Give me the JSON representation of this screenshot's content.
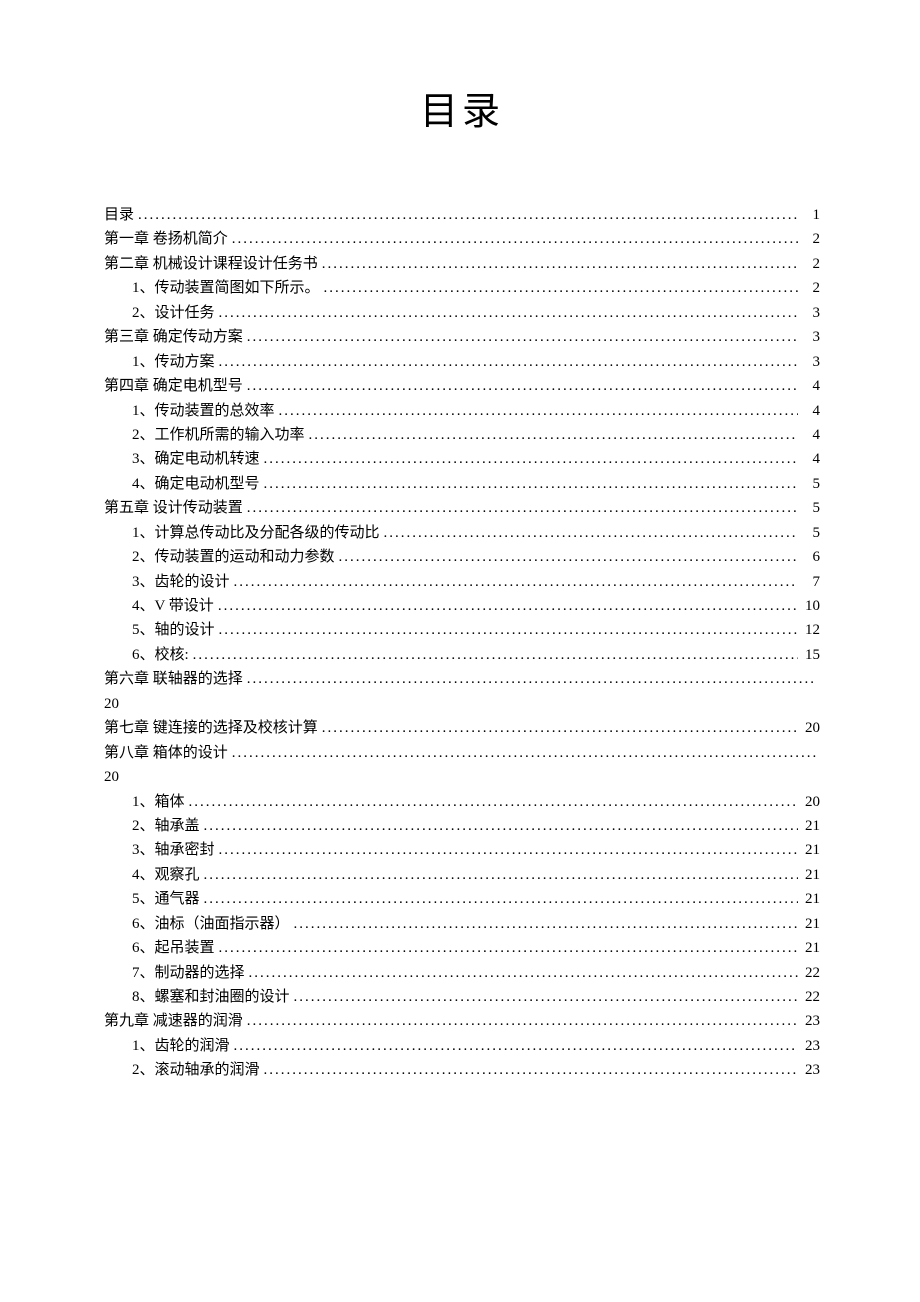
{
  "title": "目录",
  "entries": [
    {
      "indent": 0,
      "label": "目录",
      "page": "1",
      "wrap": false
    },
    {
      "indent": 0,
      "label": "第一章 卷扬机简介",
      "page": "2",
      "wrap": false
    },
    {
      "indent": 0,
      "label": "第二章 机械设计课程设计任务书",
      "page": "2",
      "wrap": false
    },
    {
      "indent": 1,
      "label": "1、传动装置简图如下所示。",
      "page": "2",
      "wrap": false
    },
    {
      "indent": 1,
      "label": "2、设计任务",
      "page": "3",
      "wrap": false
    },
    {
      "indent": 0,
      "label": "第三章 确定传动方案",
      "page": "3",
      "wrap": false
    },
    {
      "indent": 1,
      "label": "1、传动方案",
      "page": "3",
      "wrap": false
    },
    {
      "indent": 0,
      "label": "第四章 确定电机型号",
      "page": "4",
      "wrap": false
    },
    {
      "indent": 1,
      "label": "1、传动装置的总效率",
      "page": "4",
      "wrap": false
    },
    {
      "indent": 1,
      "label": "2、工作机所需的输入功率",
      "page": "4",
      "wrap": false
    },
    {
      "indent": 1,
      "label": "3、确定电动机转速",
      "page": "4",
      "wrap": false
    },
    {
      "indent": 1,
      "label": "4、确定电动机型号",
      "page": "5",
      "wrap": false
    },
    {
      "indent": 0,
      "label": "第五章 设计传动装置",
      "page": "5",
      "wrap": false
    },
    {
      "indent": 1,
      "label": "1、计算总传动比及分配各级的传动比",
      "page": "5",
      "wrap": false
    },
    {
      "indent": 1,
      "label": "2、传动装置的运动和动力参数",
      "page": "6",
      "wrap": false
    },
    {
      "indent": 1,
      "label": "3、齿轮的设计",
      "page": "7",
      "wrap": false
    },
    {
      "indent": 1,
      "label": "4、V 带设计",
      "page": "10",
      "wrap": false
    },
    {
      "indent": 1,
      "label": "5、轴的设计",
      "page": "12",
      "wrap": false
    },
    {
      "indent": 1,
      "label": "6、校核:",
      "page": "15",
      "wrap": false
    },
    {
      "indent": 0,
      "label": "第六章 联轴器的选择",
      "page": "20",
      "wrap": true
    },
    {
      "indent": 0,
      "label": "第七章 键连接的选择及校核计算",
      "page": "20",
      "wrap": false
    },
    {
      "indent": 0,
      "label": "第八章 箱体的设计",
      "page": "20",
      "wrap": true
    },
    {
      "indent": 1,
      "label": "1、箱体",
      "page": "20",
      "wrap": false
    },
    {
      "indent": 1,
      "label": "2、轴承盖",
      "page": "21",
      "wrap": false
    },
    {
      "indent": 1,
      "label": "3、轴承密封",
      "page": "21",
      "wrap": false
    },
    {
      "indent": 1,
      "label": "4、观察孔",
      "page": "21",
      "wrap": false
    },
    {
      "indent": 1,
      "label": "5、通气器",
      "page": "21",
      "wrap": false
    },
    {
      "indent": 1,
      "label": "6、油标（油面指示器）",
      "page": "21",
      "wrap": false
    },
    {
      "indent": 1,
      "label": "6、起吊装置",
      "page": "21",
      "wrap": false
    },
    {
      "indent": 1,
      "label": "7、制动器的选择",
      "page": "22",
      "wrap": false
    },
    {
      "indent": 1,
      "label": "8、螺塞和封油圈的设计",
      "page": "22",
      "wrap": false
    },
    {
      "indent": 0,
      "label": "第九章 减速器的润滑",
      "page": "23",
      "wrap": false
    },
    {
      "indent": 1,
      "label": "1、齿轮的润滑",
      "page": "23",
      "wrap": false
    },
    {
      "indent": 1,
      "label": "2、滚动轴承的润滑",
      "page": "23",
      "wrap": false
    }
  ]
}
